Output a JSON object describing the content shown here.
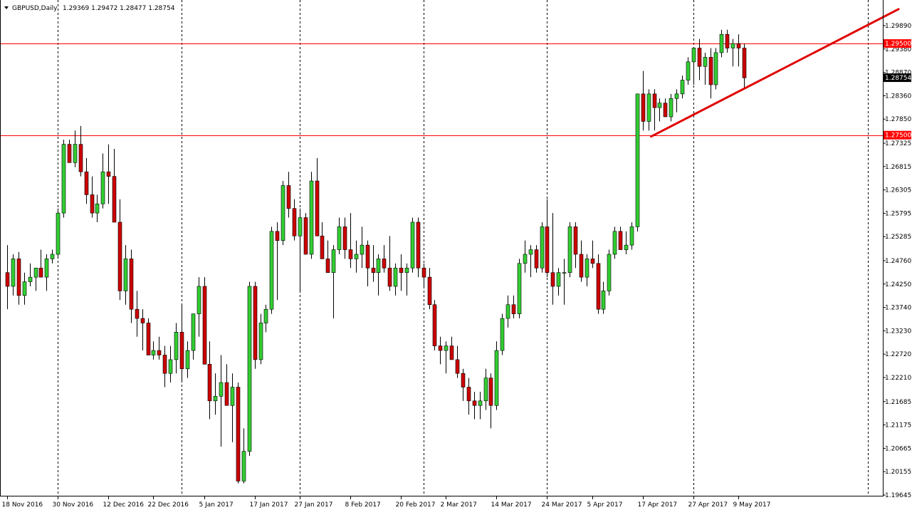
{
  "header": {
    "symbol": "GBPUSD,Daily",
    "ohlc": "1.29369 1.29472 1.28477 1.28754"
  },
  "colors": {
    "background": "#ffffff",
    "bull": "#32cd32",
    "bear": "#cc0000",
    "wick": "#000000",
    "hline": "#ff0000",
    "trendline": "#e00000",
    "grid": "#000000"
  },
  "chart_data": {
    "type": "candlestick",
    "symbol": "GBPUSD",
    "timeframe": "Daily",
    "ylim": [
      1.195,
      1.305
    ],
    "y_ticks": [
      "1.29890",
      "1.29380",
      "1.28870",
      "1.28360",
      "1.27850",
      "1.27325",
      "1.26815",
      "1.26305",
      "1.25795",
      "1.25285",
      "1.24760",
      "1.24250",
      "1.23740",
      "1.23230",
      "1.22720",
      "1.22210",
      "1.21685",
      "1.21175",
      "1.20665",
      "1.20155",
      "1.19645"
    ],
    "x_ticks": [
      "18 Nov 2016",
      "30 Nov 2016",
      "12 Dec 2016",
      "22 Dec 2016",
      "5 Jan 2017",
      "17 Jan 2017",
      "27 Jan 2017",
      "8 Feb 2017",
      "20 Feb 2017",
      "2 Mar 2017",
      "14 Mar 2017",
      "24 Mar 2017",
      "5 Apr 2017",
      "17 Apr 2017",
      "27 Apr 2017",
      "9 May 2017"
    ],
    "x_tick_bar_index": [
      0,
      9,
      18,
      26,
      35,
      44,
      52,
      61,
      70,
      78,
      87,
      96,
      104,
      113,
      122,
      130
    ],
    "period_separator_bar_index": [
      9,
      31,
      52,
      74,
      96,
      122,
      153
    ],
    "hlines": [
      {
        "value": 1.295,
        "label": "1.29500"
      },
      {
        "value": 1.275,
        "label": "1.27500"
      }
    ],
    "current_price": {
      "value": 1.28754,
      "label": "1.28754"
    },
    "trendline": {
      "from_bar": 114.5,
      "from_price": 1.2747,
      "to_bar": 158.5,
      "to_price": 1.3025
    },
    "candles": [
      [
        1.245,
        1.251,
        1.237,
        1.242
      ],
      [
        1.242,
        1.249,
        1.24,
        1.248
      ],
      [
        1.248,
        1.2495,
        1.238,
        1.24
      ],
      [
        1.24,
        1.245,
        1.238,
        1.243
      ],
      [
        1.243,
        1.247,
        1.242,
        1.244
      ],
      [
        1.244,
        1.246,
        1.241,
        1.246
      ],
      [
        1.246,
        1.25,
        1.244,
        1.244
      ],
      [
        1.244,
        1.249,
        1.241,
        1.248
      ],
      [
        1.248,
        1.25,
        1.247,
        1.249
      ],
      [
        1.249,
        1.259,
        1.248,
        1.258
      ],
      [
        1.258,
        1.274,
        1.257,
        1.273
      ],
      [
        1.273,
        1.274,
        1.269,
        1.269
      ],
      [
        1.269,
        1.276,
        1.268,
        1.273
      ],
      [
        1.273,
        1.277,
        1.266,
        1.267
      ],
      [
        1.267,
        1.27,
        1.26,
        1.262
      ],
      [
        1.262,
        1.266,
        1.257,
        1.258
      ],
      [
        1.258,
        1.262,
        1.256,
        1.26
      ],
      [
        1.26,
        1.271,
        1.259,
        1.267
      ],
      [
        1.267,
        1.273,
        1.26,
        1.266
      ],
      [
        1.266,
        1.272,
        1.256,
        1.256
      ],
      [
        1.256,
        1.261,
        1.239,
        1.241
      ],
      [
        1.241,
        1.251,
        1.238,
        1.248
      ],
      [
        1.248,
        1.25,
        1.234,
        1.237
      ],
      [
        1.237,
        1.241,
        1.231,
        1.235
      ],
      [
        1.235,
        1.237,
        1.228,
        1.234
      ],
      [
        1.234,
        1.235,
        1.227,
        1.227
      ],
      [
        1.227,
        1.23,
        1.226,
        1.228
      ],
      [
        1.228,
        1.231,
        1.226,
        1.227
      ],
      [
        1.227,
        1.229,
        1.22,
        1.223
      ],
      [
        1.223,
        1.229,
        1.221,
        1.226
      ],
      [
        1.226,
        1.234,
        1.223,
        1.232
      ],
      [
        1.232,
        1.238,
        1.221,
        1.224
      ],
      [
        1.224,
        1.23,
        1.222,
        1.228
      ],
      [
        1.228,
        1.236,
        1.226,
        1.236
      ],
      [
        1.236,
        1.244,
        1.231,
        1.242
      ],
      [
        1.242,
        1.244,
        1.225,
        1.225
      ],
      [
        1.225,
        1.23,
        1.213,
        1.217
      ],
      [
        1.217,
        1.223,
        1.214,
        1.218
      ],
      [
        1.218,
        1.227,
        1.207,
        1.221
      ],
      [
        1.221,
        1.225,
        1.216,
        1.216
      ],
      [
        1.216,
        1.223,
        1.208,
        1.22
      ],
      [
        1.22,
        1.221,
        1.199,
        1.1995
      ],
      [
        1.1995,
        1.211,
        1.199,
        1.206
      ],
      [
        1.206,
        1.243,
        1.205,
        1.242
      ],
      [
        1.242,
        1.243,
        1.224,
        1.226
      ],
      [
        1.226,
        1.236,
        1.225,
        1.234
      ],
      [
        1.234,
        1.238,
        1.232,
        1.237
      ],
      [
        1.237,
        1.255,
        1.236,
        1.254
      ],
      [
        1.254,
        1.256,
        1.239,
        1.252
      ],
      [
        1.252,
        1.265,
        1.251,
        1.264
      ],
      [
        1.264,
        1.267,
        1.257,
        1.259
      ],
      [
        1.259,
        1.261,
        1.252,
        1.253
      ],
      [
        1.253,
        1.259,
        1.241,
        1.257
      ],
      [
        1.257,
        1.258,
        1.249,
        1.249
      ],
      [
        1.249,
        1.267,
        1.248,
        1.265
      ],
      [
        1.265,
        1.27,
        1.253,
        1.253
      ],
      [
        1.253,
        1.256,
        1.249,
        1.248
      ],
      [
        1.248,
        1.252,
        1.246,
        1.245
      ],
      [
        1.245,
        1.251,
        1.235,
        1.25
      ],
      [
        1.25,
        1.257,
        1.249,
        1.255
      ],
      [
        1.255,
        1.257,
        1.248,
        1.25
      ],
      [
        1.25,
        1.258,
        1.246,
        1.248
      ],
      [
        1.248,
        1.252,
        1.245,
        1.249
      ],
      [
        1.249,
        1.255,
        1.246,
        1.251
      ],
      [
        1.251,
        1.252,
        1.242,
        1.246
      ],
      [
        1.246,
        1.251,
        1.243,
        1.245
      ],
      [
        1.245,
        1.249,
        1.24,
        1.248
      ],
      [
        1.248,
        1.251,
        1.245,
        1.246
      ],
      [
        1.246,
        1.253,
        1.241,
        1.242
      ],
      [
        1.242,
        1.247,
        1.24,
        1.246
      ],
      [
        1.246,
        1.249,
        1.241,
        1.245
      ],
      [
        1.245,
        1.247,
        1.24,
        1.246
      ],
      [
        1.246,
        1.257,
        1.245,
        1.256
      ],
      [
        1.256,
        1.257,
        1.244,
        1.246
      ],
      [
        1.246,
        1.247,
        1.242,
        1.244
      ],
      [
        1.244,
        1.246,
        1.237,
        1.238
      ],
      [
        1.238,
        1.239,
        1.228,
        1.229
      ],
      [
        1.229,
        1.231,
        1.225,
        1.228
      ],
      [
        1.228,
        1.23,
        1.223,
        1.229
      ],
      [
        1.229,
        1.231,
        1.226,
        1.226
      ],
      [
        1.226,
        1.229,
        1.222,
        1.223
      ],
      [
        1.223,
        1.224,
        1.217,
        1.22
      ],
      [
        1.22,
        1.222,
        1.214,
        1.217
      ],
      [
        1.217,
        1.219,
        1.213,
        1.216
      ],
      [
        1.216,
        1.219,
        1.213,
        1.217
      ],
      [
        1.217,
        1.224,
        1.215,
        1.222
      ],
      [
        1.222,
        1.223,
        1.211,
        1.216
      ],
      [
        1.216,
        1.23,
        1.215,
        1.228
      ],
      [
        1.228,
        1.236,
        1.227,
        1.235
      ],
      [
        1.235,
        1.24,
        1.233,
        1.238
      ],
      [
        1.238,
        1.24,
        1.235,
        1.236
      ],
      [
        1.236,
        1.248,
        1.235,
        1.247
      ],
      [
        1.247,
        1.252,
        1.245,
        1.249
      ],
      [
        1.249,
        1.251,
        1.244,
        1.25
      ],
      [
        1.25,
        1.251,
        1.245,
        1.246
      ],
      [
        1.246,
        1.256,
        1.245,
        1.255
      ],
      [
        1.255,
        1.261,
        1.244,
        1.245
      ],
      [
        1.245,
        1.258,
        1.238,
        1.242
      ],
      [
        1.242,
        1.246,
        1.24,
        1.245
      ],
      [
        1.245,
        1.248,
        1.238,
        1.245
      ],
      [
        1.245,
        1.256,
        1.244,
        1.255
      ],
      [
        1.255,
        1.256,
        1.246,
        1.249
      ],
      [
        1.249,
        1.252,
        1.243,
        1.244
      ],
      [
        1.244,
        1.249,
        1.242,
        1.248
      ],
      [
        1.248,
        1.252,
        1.246,
        1.247
      ],
      [
        1.247,
        1.249,
        1.236,
        1.237
      ],
      [
        1.237,
        1.243,
        1.236,
        1.241
      ],
      [
        1.241,
        1.25,
        1.24,
        1.249
      ],
      [
        1.249,
        1.255,
        1.248,
        1.254
      ],
      [
        1.254,
        1.255,
        1.25,
        1.25
      ],
      [
        1.25,
        1.254,
        1.249,
        1.251
      ],
      [
        1.251,
        1.256,
        1.25,
        1.255
      ],
      [
        1.255,
        1.284,
        1.254,
        1.284
      ],
      [
        1.284,
        1.289,
        1.276,
        1.278
      ],
      [
        1.278,
        1.285,
        1.276,
        1.284
      ],
      [
        1.284,
        1.285,
        1.276,
        1.281
      ],
      [
        1.281,
        1.283,
        1.278,
        1.282
      ],
      [
        1.282,
        1.283,
        1.279,
        1.279
      ],
      [
        1.279,
        1.284,
        1.278,
        1.283
      ],
      [
        1.283,
        1.285,
        1.28,
        1.284
      ],
      [
        1.284,
        1.288,
        1.283,
        1.287
      ],
      [
        1.287,
        1.292,
        1.286,
        1.291
      ],
      [
        1.291,
        1.294,
        1.286,
        1.294
      ],
      [
        1.294,
        1.296,
        1.287,
        1.29
      ],
      [
        1.29,
        1.293,
        1.286,
        1.292
      ],
      [
        1.292,
        1.294,
        1.283,
        1.286
      ],
      [
        1.286,
        1.294,
        1.285,
        1.293
      ],
      [
        1.293,
        1.298,
        1.292,
        1.297
      ],
      [
        1.297,
        1.298,
        1.293,
        1.294
      ],
      [
        1.294,
        1.296,
        1.29,
        1.295
      ],
      [
        1.295,
        1.297,
        1.29,
        1.294
      ],
      [
        1.294,
        1.295,
        1.285,
        1.2875
      ]
    ]
  }
}
